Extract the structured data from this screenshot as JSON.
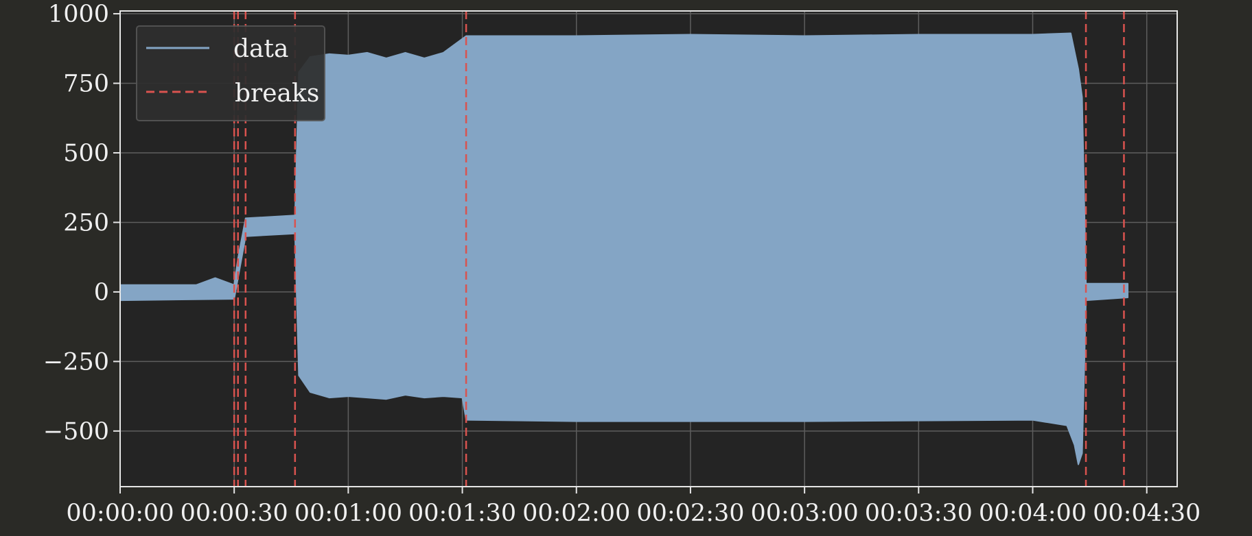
{
  "chart_data": {
    "type": "line",
    "title": "",
    "xlabel": "",
    "ylabel": "",
    "xlim": [
      "00:00:00",
      "00:04:38"
    ],
    "ylim": [
      -700,
      1010
    ],
    "grid": true,
    "legend_position": "top-left",
    "x_ticks": [
      "00:00:00",
      "00:00:30",
      "00:01:00",
      "00:01:30",
      "00:02:00",
      "00:02:30",
      "00:03:00",
      "00:03:30",
      "00:04:00",
      "00:04:30"
    ],
    "y_ticks": [
      -500,
      -250,
      0,
      250,
      500,
      750,
      1000
    ],
    "y_tick_labels": [
      "−500",
      "−250",
      "0",
      "250",
      "500",
      "750",
      "1000"
    ],
    "series": [
      {
        "name": "data",
        "color": "#84a5c5",
        "style": "solid",
        "upper_envelope": [
          [
            "00:00:00",
            25
          ],
          [
            "00:00:20",
            25
          ],
          [
            "00:00:25",
            50
          ],
          [
            "00:00:30",
            25
          ],
          [
            "00:00:31",
            120
          ],
          [
            "00:00:33",
            265
          ],
          [
            "00:00:46",
            275
          ],
          [
            "00:00:47",
            790
          ],
          [
            "00:00:50",
            845
          ],
          [
            "00:00:55",
            855
          ],
          [
            "00:01:00",
            850
          ],
          [
            "00:01:05",
            860
          ],
          [
            "00:01:10",
            840
          ],
          [
            "00:01:15",
            860
          ],
          [
            "00:01:20",
            840
          ],
          [
            "00:01:25",
            860
          ],
          [
            "00:01:31",
            920
          ],
          [
            "00:02:00",
            920
          ],
          [
            "00:02:30",
            925
          ],
          [
            "00:03:00",
            920
          ],
          [
            "00:03:30",
            925
          ],
          [
            "00:04:00",
            925
          ],
          [
            "00:04:10",
            930
          ],
          [
            "00:04:12",
            800
          ],
          [
            "00:04:13",
            700
          ],
          [
            "00:04:14",
            30
          ],
          [
            "00:04:25",
            30
          ]
        ],
        "lower_envelope": [
          [
            "00:00:00",
            -30
          ],
          [
            "00:00:30",
            -25
          ],
          [
            "00:00:33",
            200
          ],
          [
            "00:00:46",
            210
          ],
          [
            "00:00:47",
            -300
          ],
          [
            "00:00:50",
            -360
          ],
          [
            "00:00:55",
            -380
          ],
          [
            "00:01:00",
            -375
          ],
          [
            "00:01:05",
            -380
          ],
          [
            "00:01:10",
            -385
          ],
          [
            "00:01:15",
            -370
          ],
          [
            "00:01:20",
            -380
          ],
          [
            "00:01:25",
            -375
          ],
          [
            "00:01:30",
            -380
          ],
          [
            "00:01:31",
            -460
          ],
          [
            "00:02:00",
            -465
          ],
          [
            "00:03:00",
            -465
          ],
          [
            "00:04:00",
            -460
          ],
          [
            "00:04:09",
            -480
          ],
          [
            "00:04:11",
            -550
          ],
          [
            "00:04:12",
            -620
          ],
          [
            "00:04:13",
            -580
          ],
          [
            "00:04:14",
            -30
          ],
          [
            "00:04:25",
            -20
          ]
        ]
      },
      {
        "name": "breaks",
        "color": "#d9534f",
        "style": "dashed",
        "x": [
          "00:00:30",
          "00:00:31",
          "00:00:33",
          "00:00:46",
          "00:01:31",
          "00:04:14",
          "00:04:24"
        ]
      }
    ]
  }
}
